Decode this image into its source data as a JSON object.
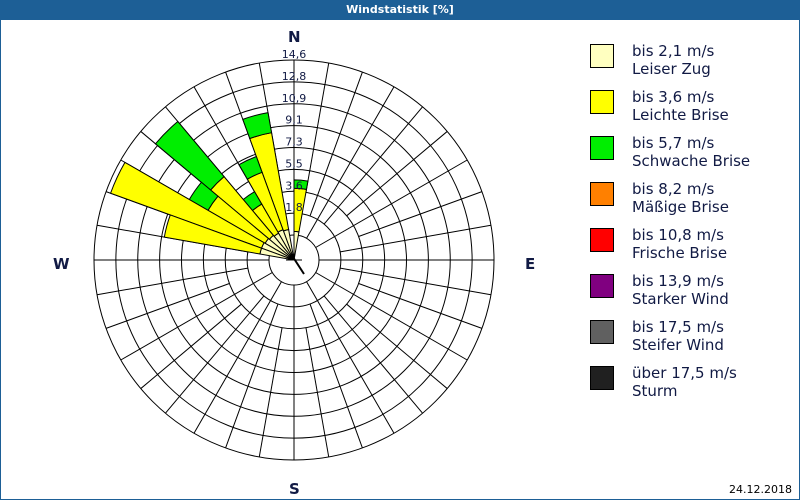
{
  "title": "Windstatistik [%]",
  "date": "24.12.2018",
  "compass": {
    "n": "N",
    "e": "E",
    "s": "S",
    "w": "W"
  },
  "legend": [
    {
      "line1": "bis 2,1 m/s",
      "line2": "Leiser Zug",
      "color": "#ffffc0"
    },
    {
      "line1": "bis 3,6 m/s",
      "line2": "Leichte Brise",
      "color": "#ffff00"
    },
    {
      "line1": "bis 5,7 m/s",
      "line2": "Schwache Brise",
      "color": "#00ee00"
    },
    {
      "line1": "bis 8,2 m/s",
      "line2": "Mäßige Brise",
      "color": "#ff8000"
    },
    {
      "line1": "bis 10,8 m/s",
      "line2": "Frische Brise",
      "color": "#ff0000"
    },
    {
      "line1": "bis 13,9 m/s",
      "line2": "Starker Wind",
      "color": "#800080"
    },
    {
      "line1": "bis 17,5 m/s",
      "line2": "Steifer Wind",
      "color": "#606060"
    },
    {
      "line1": "über 17,5 m/s",
      "line2": "Sturm",
      "color": "#202020"
    }
  ],
  "chart_data": {
    "type": "polar-bar (wind rose)",
    "title": "Windstatistik [%]",
    "ring_labels": [
      "1,8",
      "3,6",
      "5,5",
      "7,3",
      "9,1",
      "10,9",
      "12,8",
      "14,6"
    ],
    "rmax": 14.6,
    "sector_width_deg": 10,
    "series_names": [
      "Leiser Zug",
      "Leichte Brise",
      "Schwache Brise"
    ],
    "sectors": [
      {
        "from": 0,
        "to": 10,
        "cumulative": [
          0.3,
          3.9,
          4.6
        ]
      },
      {
        "from": -20,
        "to": -10,
        "cumulative": [
          0.5,
          8.7,
          10.4
        ]
      },
      {
        "from": -30,
        "to": -20,
        "cumulative": [
          0.6,
          5.7,
          7.1
        ]
      },
      {
        "from": -40,
        "to": -30,
        "cumulative": [
          0.5,
          3.3,
          4.5
        ]
      },
      {
        "from": -50,
        "to": -40,
        "cumulative": [
          0.6,
          7.0,
          13.0
        ]
      },
      {
        "from": -60,
        "to": -50,
        "cumulative": [
          0.7,
          6.2,
          8.0
        ]
      },
      {
        "from": -70,
        "to": -60,
        "cumulative": [
          0.8,
          14.2,
          14.2
        ]
      },
      {
        "from": -80,
        "to": -70,
        "cumulative": [
          0.8,
          8.9,
          8.9
        ]
      }
    ]
  }
}
